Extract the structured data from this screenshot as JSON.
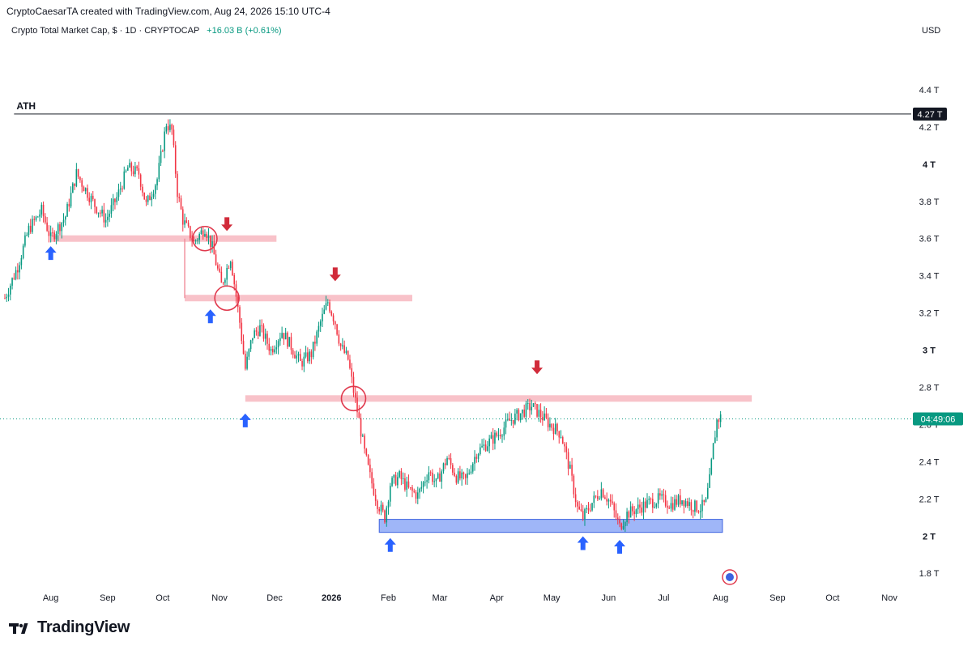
{
  "header": {
    "credit": "CryptoCaesarTA created with TradingView.com, Aug 24, 2026 15:10 UTC-4",
    "symbol": "Crypto Total Market Cap, $ · 1D · CRYPTOCAP",
    "change": "+16.03 B (+0.61%)",
    "currency": "USD"
  },
  "brand": {
    "name": "TradingView"
  },
  "colors": {
    "up": "#089981",
    "down": "#f23645",
    "resistance": "#f7b7bf",
    "support": "#7f9df5",
    "arrow_up": "#2962ff",
    "arrow_down": "#d12b3a",
    "circle": "#e0394d"
  },
  "chart_data": {
    "type": "candlestick",
    "timeframe": "1D",
    "price_axis": {
      "labels": [
        "4.4 T",
        "4.2 T",
        "4 T",
        "3.8 T",
        "3.6 T",
        "3.4 T",
        "3.2 T",
        "3 T",
        "2.8 T",
        "2.6 T",
        "2.4 T",
        "2.2 T",
        "2 T",
        "1.8 T"
      ],
      "values": [
        4.4,
        4.2,
        4.0,
        3.8,
        3.6,
        3.4,
        3.2,
        3.0,
        2.8,
        2.6,
        2.4,
        2.2,
        2.0,
        1.8
      ],
      "bold": [
        "4 T",
        "3 T",
        "2 T"
      ],
      "range": [
        1.74,
        4.5
      ]
    },
    "time_axis": {
      "labels": [
        "Aug",
        "Sep",
        "Oct",
        "Nov",
        "Dec",
        "2026",
        "Feb",
        "Mar",
        "Apr",
        "May",
        "Jun",
        "Jul",
        "Aug",
        "Sep",
        "Oct",
        "Nov"
      ],
      "day_index": [
        0,
        31,
        61,
        92,
        122,
        153,
        184,
        212,
        243,
        273,
        304,
        334,
        365,
        396,
        426,
        457
      ],
      "bold": [
        "2026"
      ],
      "range": [
        -25,
        468
      ]
    },
    "ath_line": {
      "label": "ATH",
      "value": 4.27,
      "tag": "4.27 T"
    },
    "countdown": "04:49:06",
    "current_price": 2.63,
    "price_anchors": [
      [
        -25,
        3.28
      ],
      [
        -18,
        3.45
      ],
      [
        -12,
        3.65
      ],
      [
        -5,
        3.75
      ],
      [
        0,
        3.6
      ],
      [
        8,
        3.72
      ],
      [
        14,
        3.95
      ],
      [
        18,
        3.88
      ],
      [
        24,
        3.78
      ],
      [
        30,
        3.7
      ],
      [
        36,
        3.82
      ],
      [
        42,
        3.98
      ],
      [
        48,
        3.95
      ],
      [
        52,
        3.78
      ],
      [
        58,
        3.92
      ],
      [
        63,
        4.22
      ],
      [
        66,
        4.18
      ],
      [
        69,
        3.85
      ],
      [
        72,
        3.7
      ],
      [
        78,
        3.58
      ],
      [
        84,
        3.66
      ],
      [
        88,
        3.55
      ],
      [
        93,
        3.35
      ],
      [
        98,
        3.5
      ],
      [
        103,
        3.15
      ],
      [
        106,
        2.9
      ],
      [
        110,
        3.08
      ],
      [
        114,
        3.12
      ],
      [
        120,
        3.0
      ],
      [
        126,
        3.1
      ],
      [
        131,
        3.02
      ],
      [
        136,
        2.93
      ],
      [
        142,
        2.98
      ],
      [
        147,
        3.15
      ],
      [
        151,
        3.26
      ],
      [
        155,
        3.15
      ],
      [
        158,
        3.02
      ],
      [
        162,
        2.95
      ],
      [
        165,
        2.78
      ],
      [
        168,
        2.62
      ],
      [
        171,
        2.45
      ],
      [
        174,
        2.32
      ],
      [
        178,
        2.18
      ],
      [
        182,
        2.1
      ],
      [
        185,
        2.28
      ],
      [
        190,
        2.32
      ],
      [
        195,
        2.25
      ],
      [
        200,
        2.22
      ],
      [
        206,
        2.35
      ],
      [
        210,
        2.28
      ],
      [
        216,
        2.42
      ],
      [
        221,
        2.32
      ],
      [
        226,
        2.3
      ],
      [
        232,
        2.45
      ],
      [
        238,
        2.5
      ],
      [
        244,
        2.55
      ],
      [
        250,
        2.62
      ],
      [
        256,
        2.66
      ],
      [
        262,
        2.7
      ],
      [
        266,
        2.66
      ],
      [
        272,
        2.6
      ],
      [
        278,
        2.55
      ],
      [
        283,
        2.35
      ],
      [
        287,
        2.15
      ],
      [
        290,
        2.1
      ],
      [
        295,
        2.18
      ],
      [
        300,
        2.25
      ],
      [
        305,
        2.18
      ],
      [
        310,
        2.05
      ],
      [
        314,
        2.12
      ],
      [
        320,
        2.15
      ],
      [
        326,
        2.18
      ],
      [
        332,
        2.2
      ],
      [
        338,
        2.17
      ],
      [
        344,
        2.2
      ],
      [
        350,
        2.16
      ],
      [
        354,
        2.15
      ],
      [
        357,
        2.18
      ],
      [
        359,
        2.3
      ],
      [
        361,
        2.48
      ],
      [
        363,
        2.62
      ],
      [
        365,
        2.64
      ]
    ],
    "levels": [
      {
        "kind": "resistance",
        "value": 3.6,
        "x_start": 0,
        "x_end": 123
      },
      {
        "kind": "resistance",
        "value": 3.28,
        "x_start": 73,
        "x_end": 197
      },
      {
        "kind": "resistance",
        "value": 2.74,
        "x_start": 106,
        "x_end": 382
      },
      {
        "kind": "support",
        "value_top": 2.09,
        "value_bottom": 2.02,
        "x_start": 179,
        "x_end": 366
      }
    ],
    "vertical_guides": [
      {
        "x": 73,
        "from": 3.6,
        "to": 3.28
      }
    ],
    "circles": [
      {
        "x": 84,
        "y": 3.6
      },
      {
        "x": 96,
        "y": 3.28
      },
      {
        "x": 165,
        "y": 2.74
      }
    ],
    "up_arrows": [
      {
        "x": 0,
        "y": 3.52
      },
      {
        "x": 87,
        "y": 3.18
      },
      {
        "x": 106,
        "y": 2.62
      },
      {
        "x": 185,
        "y": 1.95
      },
      {
        "x": 290,
        "y": 1.96
      },
      {
        "x": 310,
        "y": 1.94
      }
    ],
    "down_arrows": [
      {
        "x": 96,
        "y": 3.68
      },
      {
        "x": 155,
        "y": 3.41
      },
      {
        "x": 265,
        "y": 2.91
      }
    ]
  }
}
